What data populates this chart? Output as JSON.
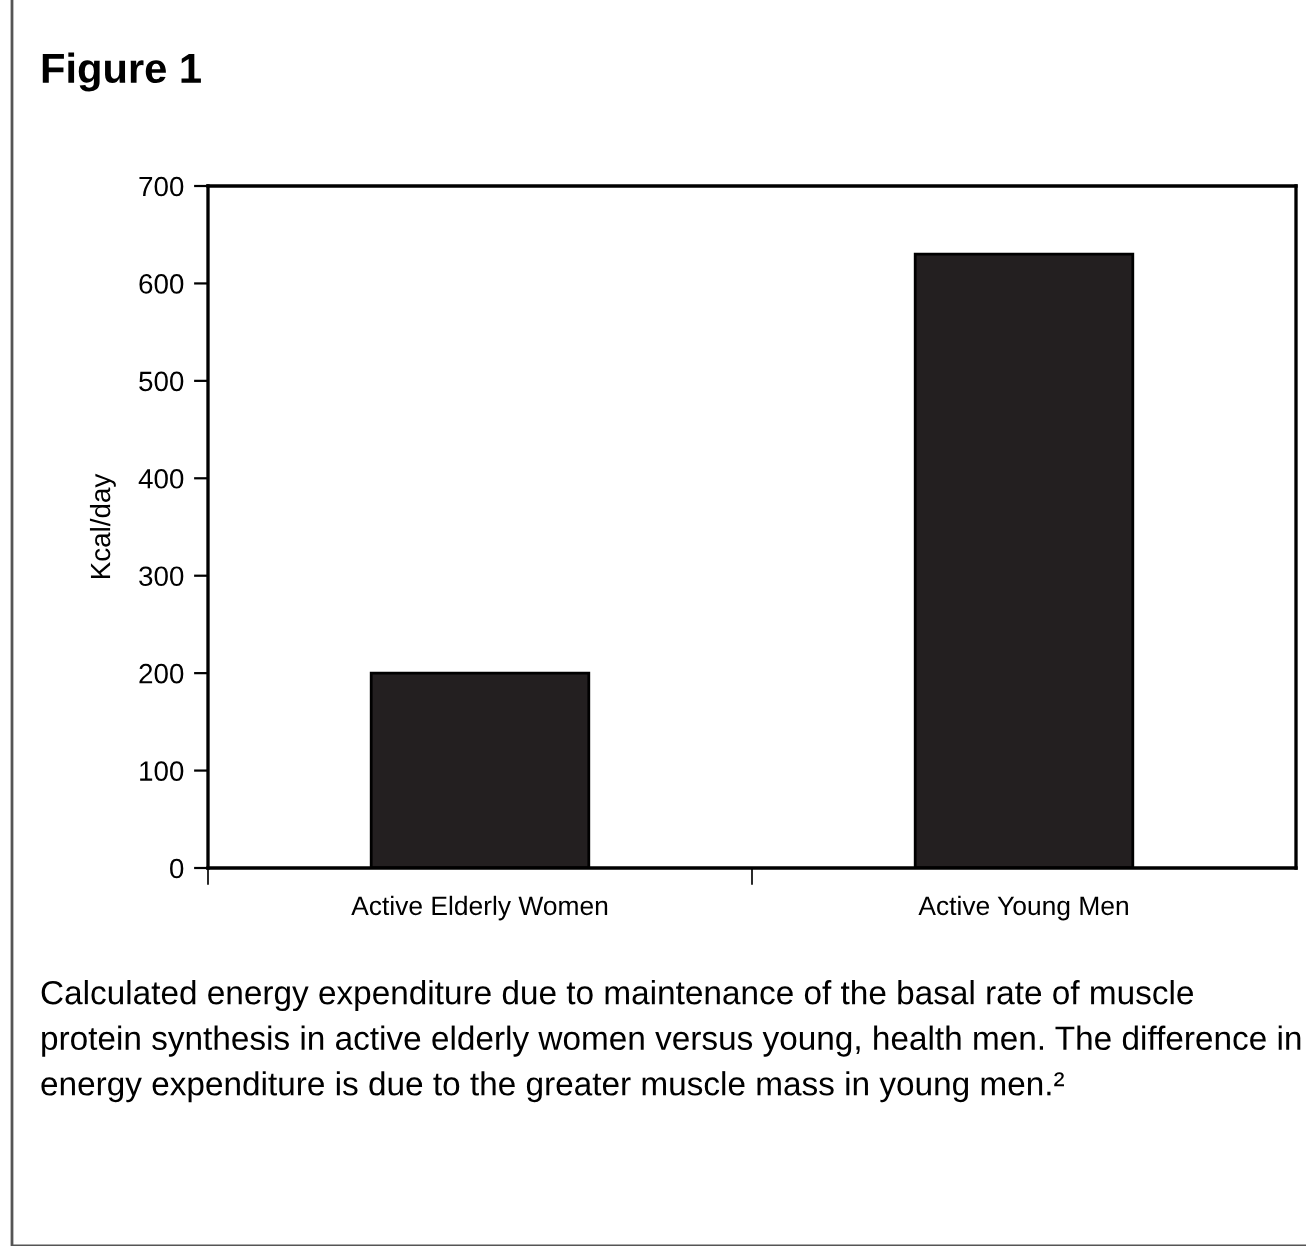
{
  "chart_data": {
    "type": "bar",
    "title": "Figure 1",
    "ylabel": "Kcal/day",
    "categories": [
      "Active Elderly Women",
      "Active Young Men"
    ],
    "values": [
      200,
      630
    ],
    "color": "#231f20",
    "ylim": [
      0,
      700
    ],
    "yticks": [
      0,
      100,
      200,
      300,
      400,
      500,
      600,
      700
    ],
    "grid": false,
    "annotations": [
      "Calculated energy expenditure due to maintenance of the basal rate of muscle protein synthesis in active elderly women versus young, health men. The difference in energy expenditure is due to the greater muscle mass in young men.²"
    ]
  }
}
